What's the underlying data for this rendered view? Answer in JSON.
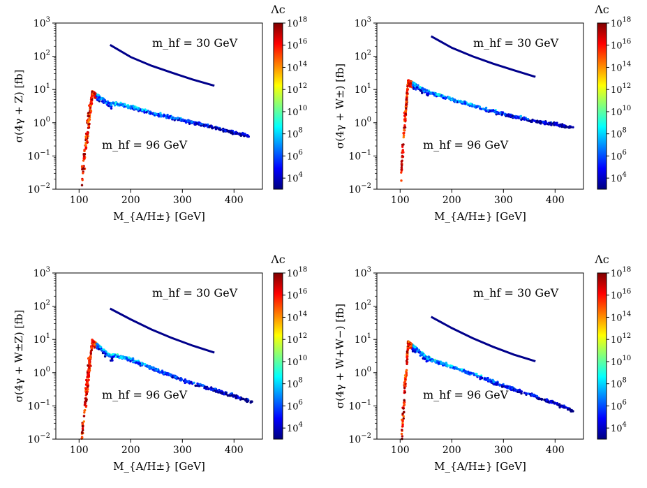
{
  "figure": {
    "colorbar_title": "Λc",
    "colorbar_ticks": [
      "10^4",
      "10^6",
      "10^8",
      "10^10",
      "10^12",
      "10^14",
      "10^16",
      "10^18"
    ],
    "x_tick_labels": [
      "100",
      "200",
      "300",
      "400"
    ],
    "y_tick_labels": [
      "10^-2",
      "10^-1",
      "10^0",
      "10^1",
      "10^2",
      "10^3"
    ]
  },
  "chart_data": [
    {
      "type": "scatter",
      "xlabel": "M_{A/H±} [GeV]",
      "ylabel": "σ(4γ + Z) [fb]",
      "xlim": [
        55,
        455
      ],
      "ylim": [
        0.01,
        1000
      ],
      "yscale": "log",
      "annotations": [
        "m_hf = 30 GeV",
        "m_hf = 96 GeV"
      ],
      "colorbar": {
        "label": "Λc",
        "range": [
          1000,
          1e+18
        ],
        "scale": "log",
        "colormap": "jet"
      },
      "series": [
        {
          "name": "m_hf = 30 GeV",
          "kind": "line",
          "color": "#00008b",
          "x": [
            160,
            200,
            240,
            280,
            320,
            362
          ],
          "y": [
            220,
            95,
            52,
            32,
            20,
            13
          ]
        },
        {
          "name": "m_hf = 96 GeV",
          "kind": "scatter",
          "peak": {
            "x": 125,
            "y": 9
          },
          "x_range": [
            105,
            435
          ],
          "y_at_x": {
            "105": 0.015,
            "125": 9,
            "160": 4,
            "200": 3,
            "250": 1.8,
            "300": 1.2,
            "350": 0.8,
            "400": 0.5,
            "435": 0.38
          }
        }
      ]
    },
    {
      "type": "scatter",
      "xlabel": "M_{A/H±} [GeV]",
      "ylabel": "σ(4γ + W±) [fb]",
      "xlim": [
        55,
        455
      ],
      "ylim": [
        0.01,
        1000
      ],
      "yscale": "log",
      "annotations": [
        "m_hf = 30 GeV",
        "m_hf = 96 GeV"
      ],
      "colorbar": {
        "label": "Λc",
        "range": [
          1000,
          1e+18
        ],
        "scale": "log",
        "colormap": "jet"
      },
      "series": [
        {
          "name": "m_hf = 30 GeV",
          "kind": "line",
          "color": "#00008b",
          "x": [
            160,
            200,
            240,
            280,
            320,
            362
          ],
          "y": [
            400,
            180,
            100,
            60,
            38,
            24
          ]
        },
        {
          "name": "m_hf = 96 GeV",
          "kind": "scatter",
          "peak": {
            "x": 115,
            "y": 20
          },
          "x_range": [
            102,
            435
          ],
          "y_at_x": {
            "102": 0.04,
            "115": 20,
            "160": 8,
            "200": 5,
            "250": 3,
            "300": 1.8,
            "350": 1.2,
            "400": 0.9,
            "435": 0.7
          }
        }
      ]
    },
    {
      "type": "scatter",
      "xlabel": "M_{A/H±} [GeV]",
      "ylabel": "σ(4γ + W±Z) [fb]",
      "xlim": [
        55,
        455
      ],
      "ylim": [
        0.01,
        1000
      ],
      "yscale": "log",
      "annotations": [
        "m_hf = 30 GeV",
        "m_hf = 96 GeV"
      ],
      "colorbar": {
        "label": "Λc",
        "range": [
          1000,
          1e+18
        ],
        "scale": "log",
        "colormap": "jet"
      },
      "series": [
        {
          "name": "m_hf = 30 GeV",
          "kind": "line",
          "color": "#00008b",
          "x": [
            160,
            200,
            240,
            280,
            320,
            362
          ],
          "y": [
            85,
            40,
            20,
            11,
            6.5,
            4
          ]
        },
        {
          "name": "m_hf = 96 GeV",
          "kind": "scatter",
          "peak": {
            "x": 125,
            "y": 10
          },
          "x_range": [
            105,
            435
          ],
          "y_at_x": {
            "105": 0.012,
            "125": 10,
            "160": 3.5,
            "200": 2.5,
            "250": 1.2,
            "300": 0.6,
            "350": 0.35,
            "400": 0.2,
            "435": 0.13
          }
        }
      ]
    },
    {
      "type": "scatter",
      "xlabel": "M_{A/H±} [GeV]",
      "ylabel": "σ(4γ + W+W−) [fb]",
      "xlim": [
        55,
        455
      ],
      "ylim": [
        0.01,
        1000
      ],
      "yscale": "log",
      "annotations": [
        "m_hf = 30 GeV",
        "m_hf = 96 GeV"
      ],
      "colorbar": {
        "label": "Λc",
        "range": [
          1000,
          1e+18
        ],
        "scale": "log",
        "colormap": "jet"
      },
      "series": [
        {
          "name": "m_hf = 30 GeV",
          "kind": "line",
          "color": "#00008b",
          "x": [
            160,
            200,
            240,
            280,
            320,
            362
          ],
          "y": [
            48,
            22,
            11,
            6,
            3.5,
            2.2
          ]
        },
        {
          "name": "m_hf = 96 GeV",
          "kind": "scatter",
          "peak": {
            "x": 115,
            "y": 9
          },
          "x_range": [
            103,
            435
          ],
          "y_at_x": {
            "103": 0.012,
            "115": 9,
            "160": 2.5,
            "200": 1.5,
            "250": 0.8,
            "300": 0.4,
            "350": 0.22,
            "400": 0.12,
            "435": 0.07
          }
        }
      ]
    }
  ]
}
